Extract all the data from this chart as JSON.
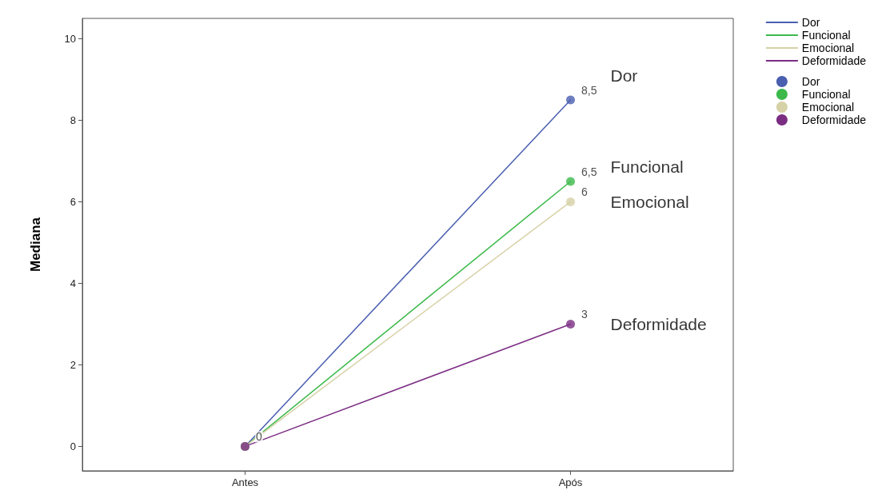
{
  "chart_data": {
    "type": "line",
    "ylabel": "Mediana",
    "categories": [
      "Antes",
      "Após"
    ],
    "ylim": [
      -0.6,
      10.5
    ],
    "yticks": [
      0,
      2,
      4,
      6,
      8,
      10
    ],
    "grid": false,
    "legend": "top right",
    "marker": "circle",
    "series": [
      {
        "name": "Dor",
        "color": "#4a5fb0",
        "values": [
          0,
          8.5
        ],
        "value_labels": [
          null,
          "8,5"
        ]
      },
      {
        "name": "Funcional",
        "color": "#3cb94a",
        "values": [
          0,
          6.5
        ],
        "value_labels": [
          null,
          "6,5"
        ]
      },
      {
        "name": "Emocional",
        "color": "#d6d1a6",
        "values": [
          0,
          6
        ],
        "value_labels": [
          null,
          "6"
        ]
      },
      {
        "name": "Deformidade",
        "color": "#7b2d83",
        "values": [
          0,
          3
        ],
        "value_labels": [
          "0",
          "3"
        ]
      }
    ],
    "annotations": [
      "Dor",
      "Funcional",
      "Emocional",
      "Deformidade"
    ]
  }
}
